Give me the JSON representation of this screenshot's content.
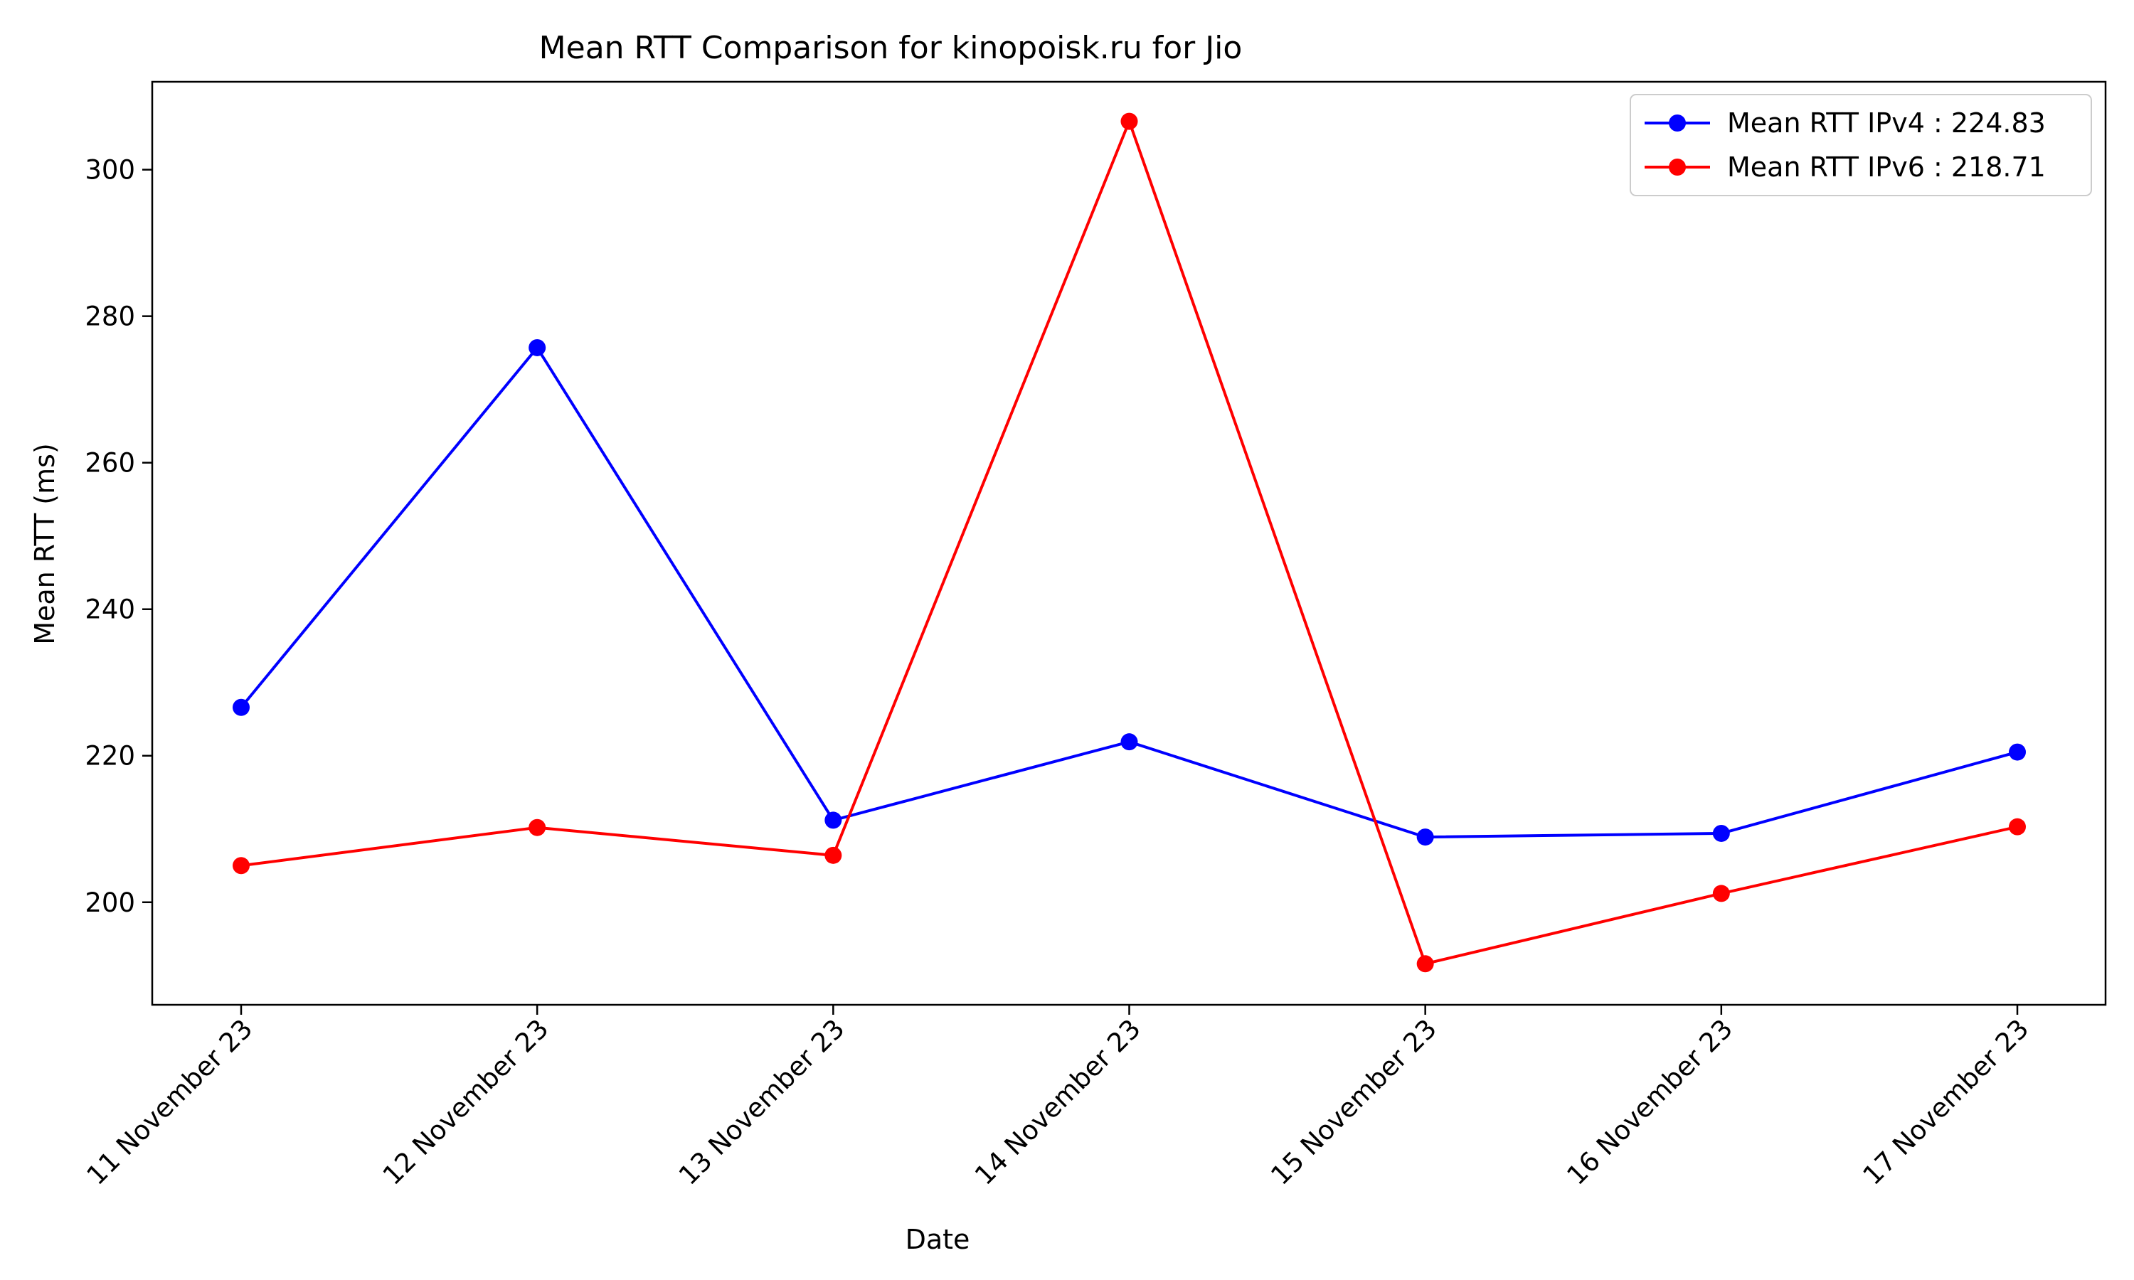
{
  "chart_data": {
    "type": "line",
    "title": "Mean RTT Comparison for kinopoisk.ru for Jio",
    "xlabel": "Date",
    "ylabel": "Mean RTT (ms)",
    "categories": [
      "11 November 23",
      "12 November 23",
      "13 November 23",
      "14 November 23",
      "15 November 23",
      "16 November 23",
      "17 November 23"
    ],
    "ylim": [
      186,
      312
    ],
    "yticks": [
      200,
      220,
      240,
      260,
      280,
      300
    ],
    "grid": false,
    "legend_position": "top-right",
    "series": [
      {
        "name": "Mean RTT IPv4 : 224.83",
        "color": "#0000ff",
        "values": [
          226.6,
          275.7,
          211.2,
          221.9,
          208.9,
          209.4,
          220.5
        ]
      },
      {
        "name": "Mean RTT IPv6 : 218.71",
        "color": "#ff0000",
        "values": [
          205.0,
          210.2,
          206.4,
          306.6,
          191.6,
          201.2,
          210.3
        ]
      }
    ]
  }
}
